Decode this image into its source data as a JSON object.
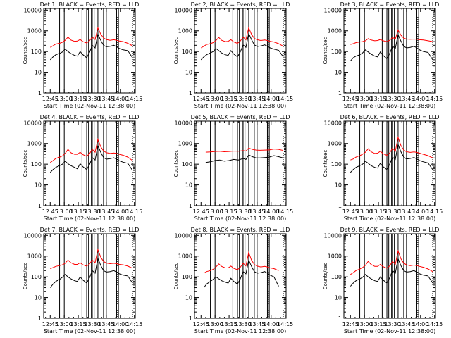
{
  "figure": {
    "xlabel": "Start Time (02-Nov-11 12:38:00)",
    "ylabel": "Counts/sec",
    "x_ticks": [
      "12:45",
      "13:00",
      "13:15",
      "13:30",
      "13:45",
      "14:00",
      "14:15"
    ],
    "y_ticks": [
      "1",
      "10",
      "100",
      "1000",
      "10000"
    ],
    "colors": {
      "events": "#000000",
      "lld": "#ff0000",
      "axes": "#000000"
    }
  },
  "chart_data": [
    {
      "type": "line",
      "title": "Det 1, BLACK = Events, RED = LLD",
      "xlabel": "Start Time (02-Nov-11 12:38:00)",
      "ylabel": "Counts/sec",
      "x_unit": "minutes after 12:38:00",
      "xlim": [
        0,
        98
      ],
      "ylim": [
        1,
        12000
      ],
      "yscale": "log",
      "x": [
        7,
        10,
        13,
        17,
        20,
        23,
        26,
        29,
        33,
        36,
        39,
        42,
        46,
        49,
        52,
        55,
        58,
        61,
        64,
        67,
        71,
        75,
        78,
        81,
        85,
        90,
        95
      ],
      "series": [
        {
          "name": "Events",
          "color": "#000000",
          "values": [
            40,
            55,
            70,
            80,
            95,
            130,
            100,
            80,
            65,
            60,
            100,
            70,
            50,
            90,
            200,
            150,
            700,
            350,
            200,
            170,
            180,
            200,
            170,
            140,
            120,
            110,
            50
          ]
        },
        {
          "name": "LLD",
          "color": "#ff0000",
          "values": [
            160,
            190,
            230,
            250,
            280,
            350,
            500,
            360,
            310,
            320,
            380,
            300,
            260,
            330,
            500,
            380,
            1400,
            700,
            450,
            380,
            350,
            370,
            350,
            320,
            300,
            250,
            190
          ]
        }
      ],
      "vlines": [
        17,
        22,
        41,
        46,
        48,
        51,
        52,
        54,
        58,
        64,
        67,
        78,
        80
      ],
      "dotted_vlines": [
        0,
        79,
        95
      ]
    },
    {
      "type": "line",
      "title": "Det 2, BLACK = Events, RED = LLD",
      "xlabel": "Start Time (02-Nov-11 12:38:00)",
      "ylabel": "Counts/sec",
      "x_unit": "minutes after 12:38:00",
      "xlim": [
        0,
        98
      ],
      "ylim": [
        1,
        12000
      ],
      "yscale": "log",
      "x": [
        7,
        10,
        13,
        17,
        20,
        23,
        26,
        29,
        33,
        36,
        39,
        42,
        46,
        49,
        52,
        55,
        58,
        61,
        64,
        67,
        71,
        75,
        78,
        81,
        85,
        90,
        95
      ],
      "series": [
        {
          "name": "Events",
          "color": "#000000",
          "values": [
            40,
            55,
            70,
            85,
            100,
            140,
            110,
            85,
            70,
            65,
            110,
            75,
            55,
            95,
            210,
            160,
            750,
            380,
            210,
            175,
            185,
            210,
            180,
            150,
            130,
            115,
            55
          ]
        },
        {
          "name": "LLD",
          "color": "#ff0000",
          "values": [
            150,
            180,
            220,
            240,
            270,
            340,
            480,
            350,
            300,
            310,
            370,
            290,
            250,
            320,
            500,
            370,
            1400,
            680,
            430,
            370,
            340,
            360,
            340,
            310,
            290,
            240,
            180
          ]
        }
      ],
      "vlines": [
        17,
        22,
        41,
        46,
        48,
        51,
        52,
        54,
        58,
        64,
        67,
        78,
        80
      ],
      "dotted_vlines": [
        0,
        79,
        95
      ]
    },
    {
      "type": "line",
      "title": "Det 3, BLACK = Events, RED = LLD",
      "xlabel": "Start Time (02-Nov-11 12:38:00)",
      "ylabel": "Counts/sec",
      "x_unit": "minutes after 12:38:00",
      "xlim": [
        0,
        98
      ],
      "ylim": [
        1,
        12000
      ],
      "yscale": "log",
      "x": [
        7,
        10,
        13,
        17,
        20,
        23,
        26,
        29,
        33,
        36,
        39,
        42,
        46,
        49,
        52,
        55,
        58,
        61,
        64,
        67,
        71,
        75,
        78,
        81,
        85,
        90,
        95
      ],
      "series": [
        {
          "name": "Events",
          "color": "#000000",
          "values": [
            35,
            50,
            60,
            70,
            85,
            120,
            95,
            75,
            60,
            55,
            95,
            65,
            45,
            80,
            180,
            140,
            650,
            320,
            180,
            150,
            160,
            180,
            150,
            120,
            100,
            90,
            40
          ]
        },
        {
          "name": "LLD",
          "color": "#ff0000",
          "values": [
            220,
            240,
            270,
            290,
            300,
            330,
            420,
            360,
            330,
            340,
            380,
            330,
            300,
            350,
            480,
            400,
            1100,
            620,
            440,
            400,
            390,
            400,
            390,
            370,
            360,
            330,
            300
          ]
        }
      ],
      "vlines": [
        17,
        22,
        41,
        46,
        48,
        51,
        52,
        54,
        58,
        64,
        67,
        78,
        80
      ],
      "dotted_vlines": [
        0,
        79,
        95
      ]
    },
    {
      "type": "line",
      "title": "Det 4, BLACK = Events, RED = LLD",
      "xlabel": "Start Time (02-Nov-11 12:38:00)",
      "ylabel": "Counts/sec",
      "x_unit": "minutes after 12:38:00",
      "xlim": [
        0,
        98
      ],
      "ylim": [
        1,
        12000
      ],
      "yscale": "log",
      "x": [
        7,
        10,
        13,
        17,
        20,
        23,
        26,
        29,
        33,
        36,
        39,
        42,
        46,
        49,
        52,
        55,
        58,
        61,
        64,
        67,
        71,
        75,
        78,
        81,
        85,
        90,
        95
      ],
      "series": [
        {
          "name": "Events",
          "color": "#000000",
          "values": [
            40,
            55,
            70,
            85,
            100,
            140,
            105,
            85,
            70,
            60,
            105,
            75,
            55,
            95,
            210,
            160,
            800,
            380,
            210,
            175,
            185,
            205,
            175,
            145,
            125,
            110,
            50
          ]
        },
        {
          "name": "LLD",
          "color": "#ff0000",
          "values": [
            120,
            150,
            190,
            220,
            250,
            330,
            520,
            360,
            300,
            300,
            380,
            290,
            240,
            320,
            520,
            380,
            1600,
            700,
            440,
            360,
            330,
            350,
            330,
            300,
            270,
            220,
            150
          ]
        }
      ],
      "vlines": [
        17,
        22,
        41,
        46,
        48,
        51,
        52,
        54,
        58,
        64,
        67,
        78,
        80
      ],
      "dotted_vlines": [
        0,
        79,
        95
      ]
    },
    {
      "type": "line",
      "title": "Det 5, BLACK = Events, RED = LLD",
      "xlabel": "Start Time (02-Nov-11 12:38:00)",
      "ylabel": "Counts/sec",
      "x_unit": "minutes after 12:38:00",
      "xlim": [
        0,
        98
      ],
      "ylim": [
        1,
        12000
      ],
      "yscale": "log",
      "x": [
        12,
        17,
        22,
        27,
        32,
        37,
        42,
        47,
        52,
        55,
        58,
        62,
        66,
        70,
        75,
        80,
        85,
        90,
        95
      ],
      "series": [
        {
          "name": "Events",
          "color": "#000000",
          "values": [
            120,
            130,
            150,
            160,
            140,
            150,
            170,
            160,
            190,
            170,
            280,
            230,
            200,
            200,
            210,
            220,
            260,
            230,
            200
          ]
        },
        {
          "name": "LLD",
          "color": "#ff0000",
          "values": [
            380,
            390,
            410,
            420,
            400,
            410,
            430,
            420,
            450,
            430,
            600,
            520,
            480,
            470,
            480,
            490,
            540,
            520,
            460
          ]
        }
      ],
      "vlines": [
        17,
        22,
        41,
        46,
        48,
        51,
        52,
        54,
        58,
        64,
        67,
        78,
        80
      ],
      "dotted_vlines": [
        0,
        79,
        95
      ]
    },
    {
      "type": "line",
      "title": "Det 6, BLACK = Events, RED = LLD",
      "xlabel": "Start Time (02-Nov-11 12:38:00)",
      "ylabel": "Counts/sec",
      "x_unit": "minutes after 12:38:00",
      "xlim": [
        0,
        98
      ],
      "ylim": [
        1,
        12000
      ],
      "yscale": "log",
      "x": [
        7,
        10,
        13,
        17,
        20,
        23,
        26,
        29,
        33,
        36,
        39,
        42,
        46,
        49,
        52,
        55,
        58,
        61,
        64,
        67,
        71,
        75,
        78,
        81,
        85,
        90,
        95
      ],
      "series": [
        {
          "name": "Events",
          "color": "#000000",
          "values": [
            40,
            55,
            70,
            85,
            100,
            140,
            110,
            85,
            70,
            65,
            110,
            75,
            55,
            100,
            220,
            170,
            900,
            400,
            220,
            180,
            190,
            210,
            180,
            150,
            130,
            115,
            55
          ]
        },
        {
          "name": "LLD",
          "color": "#ff0000",
          "values": [
            160,
            180,
            220,
            260,
            300,
            380,
            560,
            400,
            330,
            340,
            420,
            320,
            270,
            350,
            600,
            420,
            2000,
            800,
            480,
            400,
            370,
            390,
            370,
            340,
            300,
            260,
            200
          ]
        }
      ],
      "vlines": [
        17,
        22,
        41,
        46,
        48,
        51,
        52,
        54,
        58,
        64,
        67,
        78,
        80
      ],
      "dotted_vlines": [
        0,
        79,
        95
      ]
    },
    {
      "type": "line",
      "title": "Det 7, BLACK = Events, RED = LLD",
      "xlabel": "Start Time (02-Nov-11 12:38:00)",
      "ylabel": "Counts/sec",
      "x_unit": "minutes after 12:38:00",
      "xlim": [
        0,
        98
      ],
      "ylim": [
        1,
        12000
      ],
      "yscale": "log",
      "x": [
        7,
        10,
        13,
        17,
        20,
        23,
        26,
        29,
        33,
        36,
        39,
        42,
        46,
        49,
        52,
        55,
        58,
        61,
        64,
        67,
        71,
        75,
        78,
        81,
        85,
        90,
        95
      ],
      "series": [
        {
          "name": "Events",
          "color": "#000000",
          "values": [
            30,
            45,
            60,
            75,
            95,
            130,
            100,
            80,
            65,
            60,
            100,
            70,
            50,
            90,
            200,
            150,
            800,
            360,
            200,
            170,
            180,
            200,
            170,
            140,
            120,
            110,
            50
          ]
        },
        {
          "name": "LLD",
          "color": "#ff0000",
          "values": [
            250,
            280,
            320,
            350,
            380,
            450,
            650,
            480,
            400,
            400,
            480,
            380,
            330,
            420,
            650,
            480,
            2100,
            900,
            560,
            460,
            430,
            450,
            430,
            400,
            380,
            330,
            260
          ]
        }
      ],
      "vlines": [
        17,
        22,
        41,
        46,
        48,
        51,
        52,
        54,
        58,
        64,
        67,
        78,
        80
      ],
      "dotted_vlines": [
        0,
        79,
        95
      ]
    },
    {
      "type": "line",
      "title": "Det 8, BLACK = Events, RED = LLD",
      "xlabel": "Start Time (02-Nov-11 12:38:00)",
      "ylabel": "Counts/sec",
      "x_unit": "minutes after 12:38:00",
      "xlim": [
        0,
        98
      ],
      "ylim": [
        1,
        12000
      ],
      "yscale": "log",
      "x": [
        10,
        13,
        17,
        20,
        23,
        26,
        29,
        33,
        36,
        39,
        42,
        46,
        49,
        52,
        55,
        58,
        61,
        64,
        67,
        71,
        75,
        78,
        81,
        85,
        90
      ],
      "series": [
        {
          "name": "Events",
          "color": "#000000",
          "values": [
            30,
            45,
            60,
            75,
            100,
            80,
            65,
            55,
            50,
            85,
            60,
            45,
            80,
            180,
            140,
            650,
            320,
            180,
            150,
            160,
            180,
            150,
            120,
            100,
            35
          ]
        },
        {
          "name": "LLD",
          "color": "#ff0000",
          "values": [
            150,
            180,
            200,
            230,
            300,
            420,
            320,
            270,
            270,
            330,
            260,
            220,
            290,
            450,
            340,
            1500,
            640,
            400,
            330,
            300,
            320,
            300,
            270,
            250,
            200
          ]
        }
      ],
      "vlines": [
        17,
        22,
        41,
        46,
        48,
        51,
        52,
        54,
        58,
        64,
        67,
        78,
        80
      ],
      "dotted_vlines": [
        0,
        79,
        95
      ]
    },
    {
      "type": "line",
      "title": "Det 9, BLACK = Events, RED = LLD",
      "xlabel": "Start Time (02-Nov-11 12:38:00)",
      "ylabel": "Counts/sec",
      "x_unit": "minutes after 12:38:00",
      "xlim": [
        0,
        98
      ],
      "ylim": [
        1,
        12000
      ],
      "yscale": "log",
      "x": [
        7,
        10,
        13,
        17,
        20,
        23,
        26,
        29,
        33,
        36,
        39,
        42,
        46,
        49,
        52,
        55,
        58,
        61,
        64,
        67,
        71,
        75,
        78,
        81,
        85,
        90,
        95
      ],
      "series": [
        {
          "name": "Events",
          "color": "#000000",
          "values": [
            35,
            50,
            65,
            80,
            95,
            130,
            100,
            80,
            65,
            60,
            100,
            70,
            50,
            90,
            200,
            150,
            750,
            350,
            200,
            170,
            180,
            200,
            170,
            140,
            120,
            110,
            50
          ]
        },
        {
          "name": "LLD",
          "color": "#ff0000",
          "values": [
            130,
            160,
            200,
            240,
            280,
            360,
            560,
            400,
            320,
            320,
            400,
            310,
            260,
            340,
            560,
            400,
            1800,
            750,
            460,
            380,
            350,
            370,
            350,
            320,
            290,
            240,
            180
          ]
        }
      ],
      "vlines": [
        17,
        22,
        41,
        46,
        48,
        51,
        52,
        54,
        58,
        64,
        67,
        78,
        80
      ],
      "dotted_vlines": [
        0,
        79,
        95
      ]
    }
  ]
}
